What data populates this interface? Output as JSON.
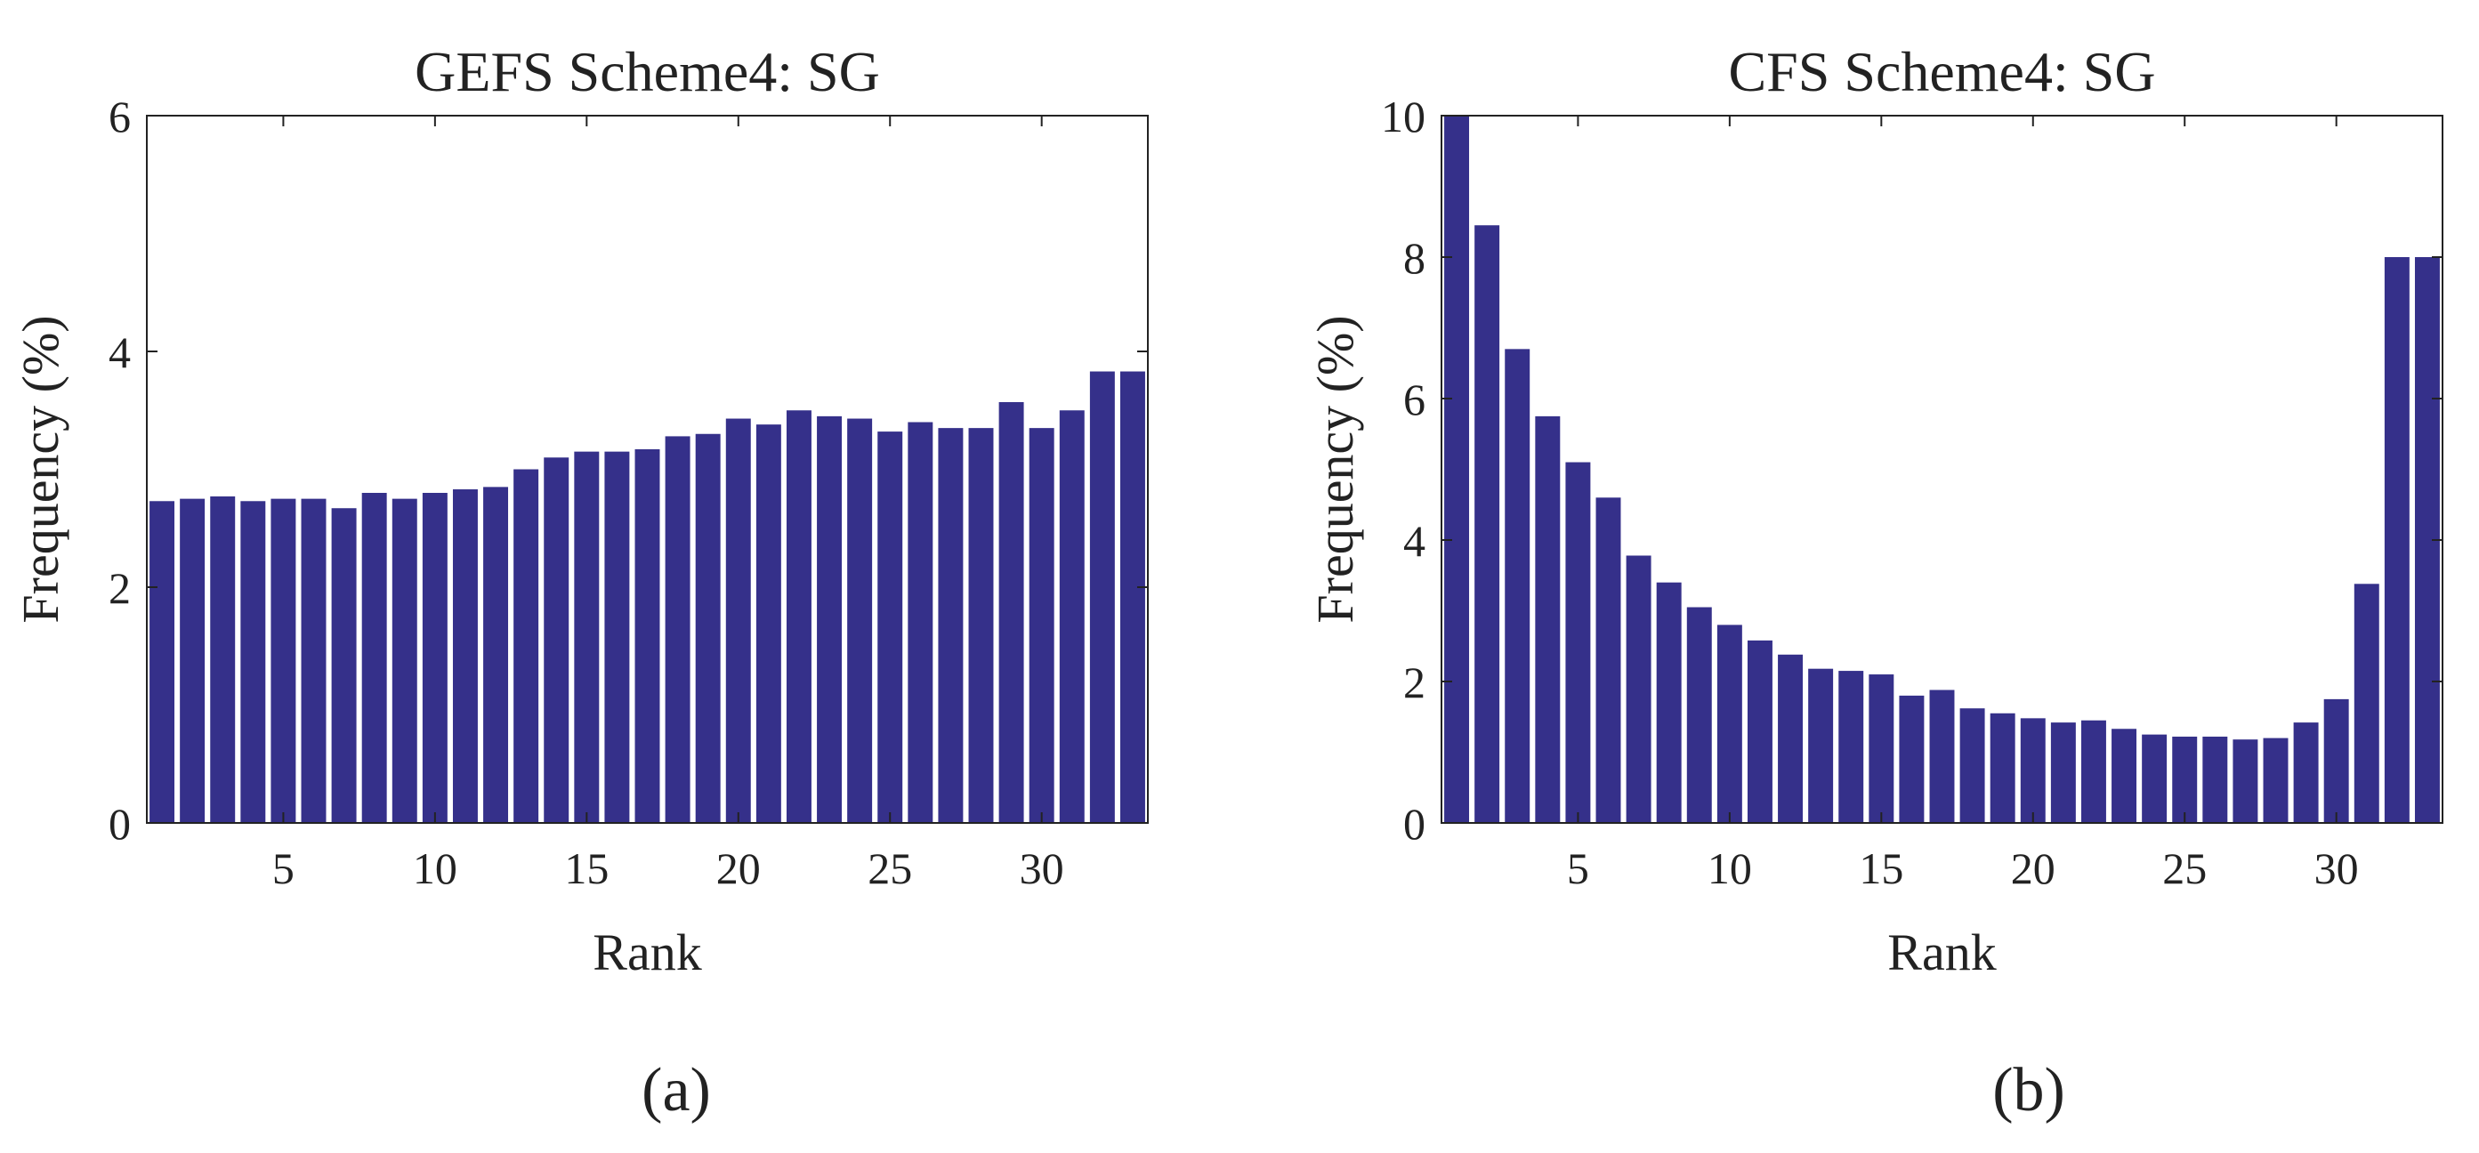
{
  "figure": {
    "panel_a_label": "(a)",
    "panel_b_label": "(b)",
    "colors": {
      "bar": "#35308a",
      "axis": "#222222",
      "background": "#ffffff"
    }
  },
  "chart_data": [
    {
      "type": "bar",
      "panel": "(a)",
      "title": "GEFS Scheme4: SG",
      "xlabel": "Rank",
      "ylabel": "Frequency (%)",
      "ylim": [
        0,
        6
      ],
      "yticks": [
        0,
        2,
        4,
        6
      ],
      "xlim": [
        0.5,
        33.5
      ],
      "xticks": [
        5,
        10,
        15,
        20,
        25,
        30
      ],
      "categories": [
        1,
        2,
        3,
        4,
        5,
        6,
        7,
        8,
        9,
        10,
        11,
        12,
        13,
        14,
        15,
        16,
        17,
        18,
        19,
        20,
        21,
        22,
        23,
        24,
        25,
        26,
        27,
        28,
        29,
        30,
        31,
        32,
        33
      ],
      "values": [
        2.73,
        2.75,
        2.77,
        2.73,
        2.75,
        2.75,
        2.67,
        2.8,
        2.75,
        2.8,
        2.83,
        2.85,
        3.0,
        3.1,
        3.15,
        3.15,
        3.17,
        3.28,
        3.3,
        3.43,
        3.38,
        3.5,
        3.45,
        3.43,
        3.32,
        3.4,
        3.35,
        3.35,
        3.57,
        3.35,
        3.5,
        3.83,
        3.83
      ]
    },
    {
      "type": "bar",
      "panel": "(b)",
      "title": "CFS Scheme4: SG",
      "xlabel": "Rank",
      "ylabel": "Frequency (%)",
      "ylim": [
        0,
        10
      ],
      "yticks": [
        0,
        2,
        4,
        6,
        8,
        10
      ],
      "xlim": [
        0.5,
        33.5
      ],
      "xticks": [
        5,
        10,
        15,
        20,
        25,
        30
      ],
      "categories": [
        1,
        2,
        3,
        4,
        5,
        6,
        7,
        8,
        9,
        10,
        11,
        12,
        13,
        14,
        15,
        16,
        17,
        18,
        19,
        20,
        21,
        22,
        23,
        24,
        25,
        26,
        27,
        28,
        29,
        30,
        31,
        32,
        33
      ],
      "values": [
        10.0,
        8.45,
        6.7,
        5.75,
        5.1,
        4.6,
        3.78,
        3.4,
        3.05,
        2.8,
        2.58,
        2.38,
        2.18,
        2.15,
        2.1,
        1.8,
        1.88,
        1.62,
        1.55,
        1.48,
        1.42,
        1.45,
        1.33,
        1.25,
        1.22,
        1.22,
        1.18,
        1.2,
        1.42,
        1.75,
        3.38,
        8.0,
        8.0
      ]
    }
  ]
}
